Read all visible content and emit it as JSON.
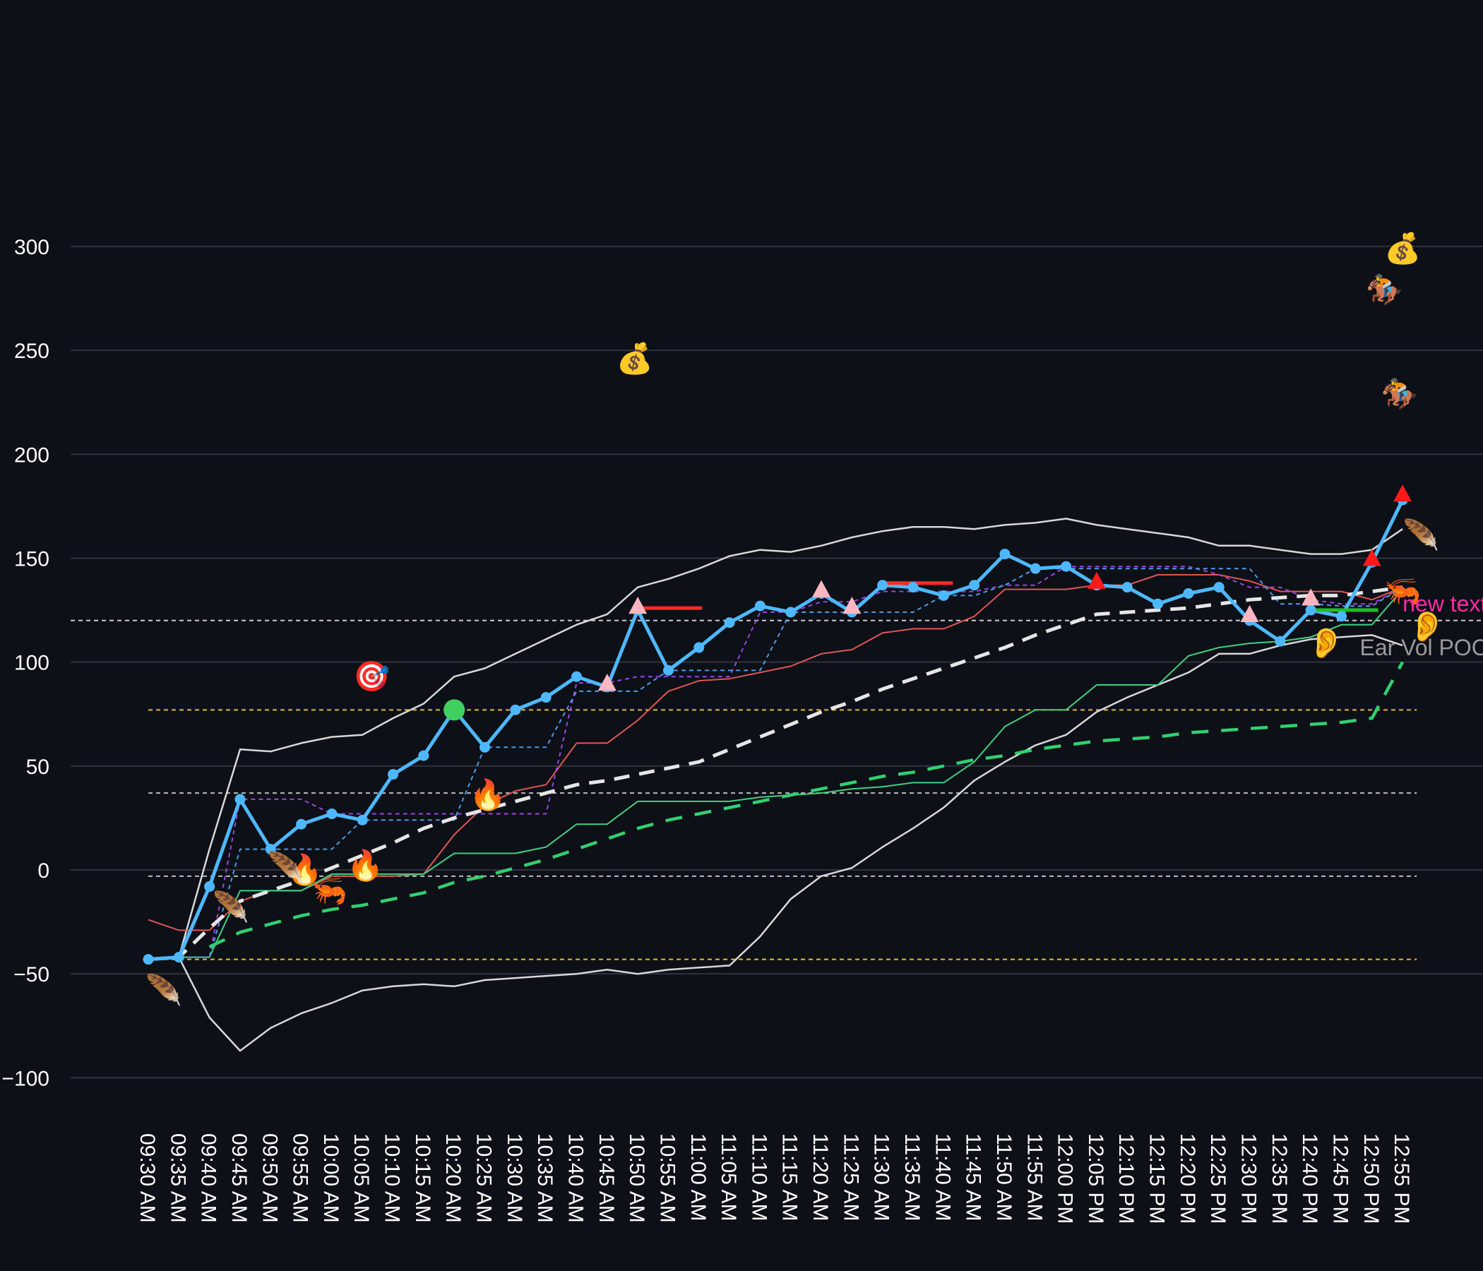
{
  "chart_data": {
    "type": "line",
    "title": "",
    "xlabel": "",
    "ylabel": "",
    "ylim": [
      -110,
      345
    ],
    "y_ticks": [
      -100,
      -50,
      0,
      50,
      100,
      150,
      200,
      250,
      300
    ],
    "grid": "horizontal",
    "x": [
      "09:30 AM",
      "09:35 AM",
      "09:40 AM",
      "09:45 AM",
      "09:50 AM",
      "09:55 AM",
      "10:00 AM",
      "10:05 AM",
      "10:10 AM",
      "10:15 AM",
      "10:20 AM",
      "10:25 AM",
      "10:30 AM",
      "10:35 AM",
      "10:40 AM",
      "10:45 AM",
      "10:50 AM",
      "10:55 AM",
      "11:00 AM",
      "11:05 AM",
      "11:10 AM",
      "11:15 AM",
      "11:20 AM",
      "11:25 AM",
      "11:30 AM",
      "11:35 AM",
      "11:40 AM",
      "11:45 AM",
      "11:50 AM",
      "11:55 AM",
      "12:00 PM",
      "12:05 PM",
      "12:10 PM",
      "12:15 PM",
      "12:20 PM",
      "12:25 PM",
      "12:30 PM",
      "12:35 PM",
      "12:40 PM",
      "12:45 PM",
      "12:50 PM",
      "12:55 PM"
    ],
    "series": [
      {
        "role": "price",
        "color": "#4db8ff",
        "values": [
          -43,
          -42,
          -8,
          34,
          10,
          22,
          27,
          24,
          46,
          55,
          77,
          59,
          77,
          83,
          93,
          88,
          125,
          96,
          107,
          119,
          127,
          124,
          133,
          124,
          137,
          136,
          132,
          137,
          152,
          145,
          146,
          137,
          136,
          128,
          133,
          136,
          120,
          110,
          125,
          122,
          148,
          178
        ]
      },
      {
        "role": "upper-band",
        "color": "#d8d8d8",
        "values": [
          -43,
          -42,
          10,
          58,
          57,
          61,
          64,
          65,
          73,
          80,
          93,
          97,
          104,
          111,
          118,
          123,
          136,
          140,
          145,
          151,
          154,
          153,
          156,
          160,
          163,
          165,
          165,
          164,
          166,
          167,
          169,
          166,
          164,
          162,
          160,
          156,
          156,
          154,
          152,
          152,
          154,
          164
        ]
      },
      {
        "role": "lower-band",
        "color": "#d8d8d8",
        "values": [
          -43,
          -42,
          -71,
          -87,
          -76,
          -69,
          -64,
          -58,
          -56,
          -55,
          -56,
          -53,
          -52,
          -51,
          -50,
          -48,
          -50,
          -48,
          -47,
          -46,
          -32,
          -14,
          -3,
          1,
          11,
          20,
          30,
          43,
          52,
          60,
          65,
          76,
          83,
          89,
          95,
          104,
          104,
          108,
          111,
          112,
          113,
          108
        ]
      },
      {
        "role": "red-line",
        "color": "#e05555",
        "values": [
          -24,
          -29,
          -29,
          -15,
          -10,
          -10,
          -3,
          -3,
          -3,
          -2,
          17,
          31,
          38,
          41,
          61,
          61,
          72,
          86,
          91,
          92,
          95,
          98,
          104,
          106,
          114,
          116,
          116,
          122,
          135,
          135,
          135,
          137,
          137,
          142,
          142,
          142,
          139,
          134,
          134,
          134,
          130,
          136
        ]
      },
      {
        "role": "green-line",
        "color": "#40d080",
        "values": [
          -43,
          -42,
          -42,
          -10,
          -10,
          -10,
          -2,
          -2,
          -2,
          -2,
          8,
          8,
          8,
          11,
          22,
          22,
          33,
          33,
          33,
          33,
          35,
          36,
          37,
          39,
          40,
          42,
          42,
          52,
          69,
          77,
          77,
          89,
          89,
          89,
          103,
          107,
          109,
          110,
          112,
          118,
          118,
          135
        ]
      },
      {
        "role": "purple-dashed",
        "color": "#9b45e0",
        "values": [
          -43,
          -42,
          -42,
          34,
          34,
          34,
          27,
          27,
          27,
          27,
          27,
          27,
          27,
          27,
          90,
          90,
          93,
          93,
          93,
          93,
          124,
          124,
          129,
          129,
          134,
          134,
          134,
          134,
          137,
          137,
          146,
          146,
          146,
          146,
          146,
          142,
          136,
          136,
          130,
          128,
          128,
          136
        ]
      },
      {
        "role": "blue-dashed",
        "color": "#4d9be6",
        "values": [
          -43,
          -42,
          -42,
          10,
          10,
          10,
          10,
          24,
          24,
          24,
          24,
          59,
          59,
          59,
          86,
          86,
          86,
          96,
          96,
          96,
          96,
          124,
          124,
          124,
          124,
          124,
          132,
          132,
          137,
          145,
          145,
          145,
          145,
          145,
          145,
          145,
          145,
          128,
          128,
          127,
          127,
          136
        ]
      },
      {
        "role": "white-dashed",
        "color": "#e6e6e6",
        "values": [
          -43,
          -42,
          -28,
          -15,
          -10,
          -5,
          1,
          7,
          13,
          20,
          25,
          29,
          33,
          37,
          41,
          43,
          46,
          49,
          52,
          58,
          64,
          70,
          76,
          81,
          87,
          92,
          97,
          102,
          107,
          113,
          118,
          123,
          124,
          125,
          126,
          128,
          130,
          131,
          132,
          132,
          134,
          136
        ]
      },
      {
        "role": "green-dashed",
        "color": "#30d070",
        "values": [
          null,
          null,
          -37,
          -30,
          -26,
          -22,
          -19,
          -17,
          -14,
          -11,
          -6,
          -3,
          1,
          5,
          10,
          15,
          20,
          24,
          27,
          30,
          33,
          36,
          39,
          42,
          45,
          47,
          50,
          53,
          55,
          58,
          60,
          62,
          63,
          64,
          66,
          67,
          68,
          69,
          70,
          71,
          73,
          100
        ]
      }
    ],
    "hlines": [
      {
        "value": 120,
        "color": "#cccccc"
      },
      {
        "value": 77,
        "color": "#e0c020"
      },
      {
        "value": 37,
        "color": "#bbbbbb"
      },
      {
        "value": -3,
        "color": "#bbbbbb"
      },
      {
        "value": -43,
        "color": "#e0c020"
      }
    ],
    "hl_start_index": 0,
    "hl_end_index": 41,
    "price_markers": [
      {
        "i": 10,
        "y": 77,
        "color": "#40d060",
        "shape": "circle"
      }
    ],
    "triangles": [
      {
        "i": 15,
        "y": 90,
        "color": "#ffb6c1"
      },
      {
        "i": 16,
        "y": 127,
        "color": "#ffb6c1"
      },
      {
        "i": 22,
        "y": 135,
        "color": "#ffb6c1"
      },
      {
        "i": 23,
        "y": 127,
        "color": "#ffb6c1"
      },
      {
        "i": 31,
        "y": 139,
        "color": "#ff1a1a"
      },
      {
        "i": 36,
        "y": 123,
        "color": "#ffb6c1"
      },
      {
        "i": 38,
        "y": 131,
        "color": "#ffb6c1"
      },
      {
        "i": 40,
        "y": 150,
        "color": "#ff1a1a"
      },
      {
        "i": 41,
        "y": 181,
        "color": "#ff1a1a"
      }
    ],
    "segments": [
      {
        "i0": 15.9,
        "i1": 18.1,
        "y": 126,
        "color": "#ff2a2a"
      },
      {
        "i0": 24.1,
        "i1": 26.3,
        "y": 138,
        "color": "#ff2a2a"
      },
      {
        "i0": 38.0,
        "i1": 40.2,
        "y": 125,
        "color": "#20c020"
      }
    ],
    "emoji": [
      {
        "i": 15.9,
        "y": 246,
        "glyph": "💰"
      },
      {
        "i": 41,
        "y": 299,
        "glyph": "💰"
      },
      {
        "i": 40.4,
        "y": 279,
        "glyph": "🏇"
      },
      {
        "i": 40.9,
        "y": 229,
        "glyph": "🏇"
      },
      {
        "i": 7.3,
        "y": 93,
        "glyph": "🎯"
      },
      {
        "i": 11.1,
        "y": 36,
        "glyph": "🔥"
      },
      {
        "i": 5.1,
        "y": 0,
        "glyph": "🔥"
      },
      {
        "i": 7.1,
        "y": 2,
        "glyph": "🔥"
      },
      {
        "i": 5.9,
        "y": -10,
        "glyph": "🦐"
      },
      {
        "i": 41,
        "y": 134,
        "glyph": "🦐"
      },
      {
        "i": 4.5,
        "y": 1,
        "glyph": "🪶"
      },
      {
        "i": 2.7,
        "y": -18,
        "glyph": "🪶"
      },
      {
        "i": 0.5,
        "y": -58,
        "glyph": "🪶"
      },
      {
        "i": 41.6,
        "y": 161,
        "glyph": "🪶"
      },
      {
        "i": 41.8,
        "y": 117,
        "glyph": "👂"
      },
      {
        "i": 38.5,
        "y": 109,
        "glyph": "👂"
      }
    ],
    "annotations": [
      {
        "text": "new text",
        "i": 41,
        "y": 128,
        "color": "#ff2aa3"
      },
      {
        "text": "Ear Vol POC",
        "i": 39.6,
        "y": 107,
        "color": "#9a9a9a"
      }
    ]
  }
}
